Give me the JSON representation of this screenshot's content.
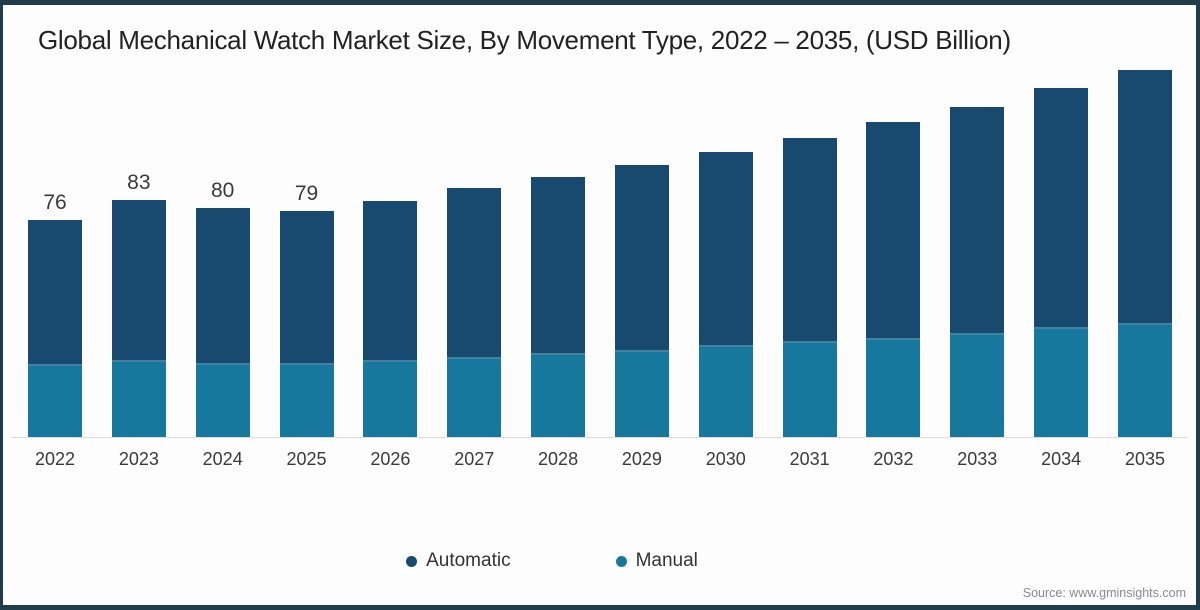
{
  "title": "Global Mechanical Watch Market Size, By Movement Type, 2022 – 2035, (USD Billion)",
  "source": "Source: www.gminsights.com",
  "frame": {
    "border_color": "#1f3d4a",
    "background": "#fdfdfd"
  },
  "legend": [
    {
      "label": "Automatic",
      "color": "#174a6e"
    },
    {
      "label": "Manual",
      "color": "#17789e"
    }
  ],
  "chart_data": {
    "type": "bar",
    "stacked": true,
    "title": "Global Mechanical Watch Market Size, By Movement Type, 2022 – 2035, (USD Billion)",
    "units": "USD Billion",
    "categories": [
      "2022",
      "2023",
      "2024",
      "2025",
      "2026",
      "2027",
      "2028",
      "2029",
      "2030",
      "2031",
      "2032",
      "2033",
      "2034",
      "2035"
    ],
    "series": [
      {
        "name": "Automatic",
        "color": "#174a6e",
        "values": [
          50.5,
          56,
          54,
          53,
          55.5,
          59,
          61.5,
          64.5,
          67.5,
          71,
          75.5,
          79,
          83.5,
          88.5
        ]
      },
      {
        "name": "Manual",
        "color": "#17789e",
        "values": [
          25.5,
          27,
          26,
          26,
          27,
          28,
          29.5,
          30.5,
          32,
          33.5,
          34.5,
          36.5,
          38.5,
          40
        ]
      }
    ],
    "totals": [
      76,
      83,
      80,
      79,
      82.5,
      87,
      91,
      95,
      99.5,
      104.5,
      110,
      115.5,
      122,
      128.5
    ],
    "total_labels": [
      "76",
      "83",
      "80",
      "79",
      null,
      null,
      null,
      null,
      null,
      null,
      null,
      null,
      null,
      null
    ],
    "xlabel": "",
    "ylabel": "USD Billion",
    "ylim": [
      0,
      130
    ],
    "grid": false,
    "legend_position": "bottom"
  }
}
